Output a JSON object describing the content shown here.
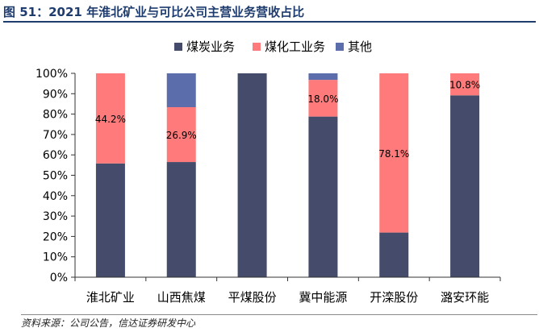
{
  "figure": {
    "title": "图 51：2021 年淮北矿业与可比公司主营业务营收占比",
    "source": "资料来源：公司公告，信达证券研发中心"
  },
  "chart_data": {
    "type": "bar",
    "stacked": true,
    "percent": true,
    "categories": [
      "淮北矿业",
      "山西焦煤",
      "平煤股份",
      "冀中能源",
      "开滦股份",
      "潞安环能"
    ],
    "series": [
      {
        "name": "煤炭业务",
        "color": "#444b6b",
        "values": [
          55.8,
          56.5,
          100.0,
          78.8,
          21.9,
          89.2
        ]
      },
      {
        "name": "煤化工业务",
        "color": "#ff7b7b",
        "values": [
          44.2,
          26.9,
          0.0,
          18.0,
          78.1,
          10.8
        ]
      },
      {
        "name": "其他",
        "color": "#5b6eab",
        "values": [
          0.0,
          16.6,
          0.0,
          3.2,
          0.0,
          0.0
        ]
      }
    ],
    "data_labels": [
      {
        "series": 1,
        "category": 0,
        "text": "44.2%"
      },
      {
        "series": 1,
        "category": 1,
        "text": "26.9%"
      },
      {
        "series": 1,
        "category": 3,
        "text": "18.0%"
      },
      {
        "series": 1,
        "category": 4,
        "text": "78.1%"
      },
      {
        "series": 1,
        "category": 5,
        "text": "10.8%"
      }
    ],
    "y_ticks": [
      "0%",
      "10%",
      "20%",
      "30%",
      "40%",
      "50%",
      "60%",
      "70%",
      "80%",
      "90%",
      "100%"
    ],
    "ylim": [
      0,
      100
    ],
    "legend_position": "top-center",
    "grid": false
  }
}
